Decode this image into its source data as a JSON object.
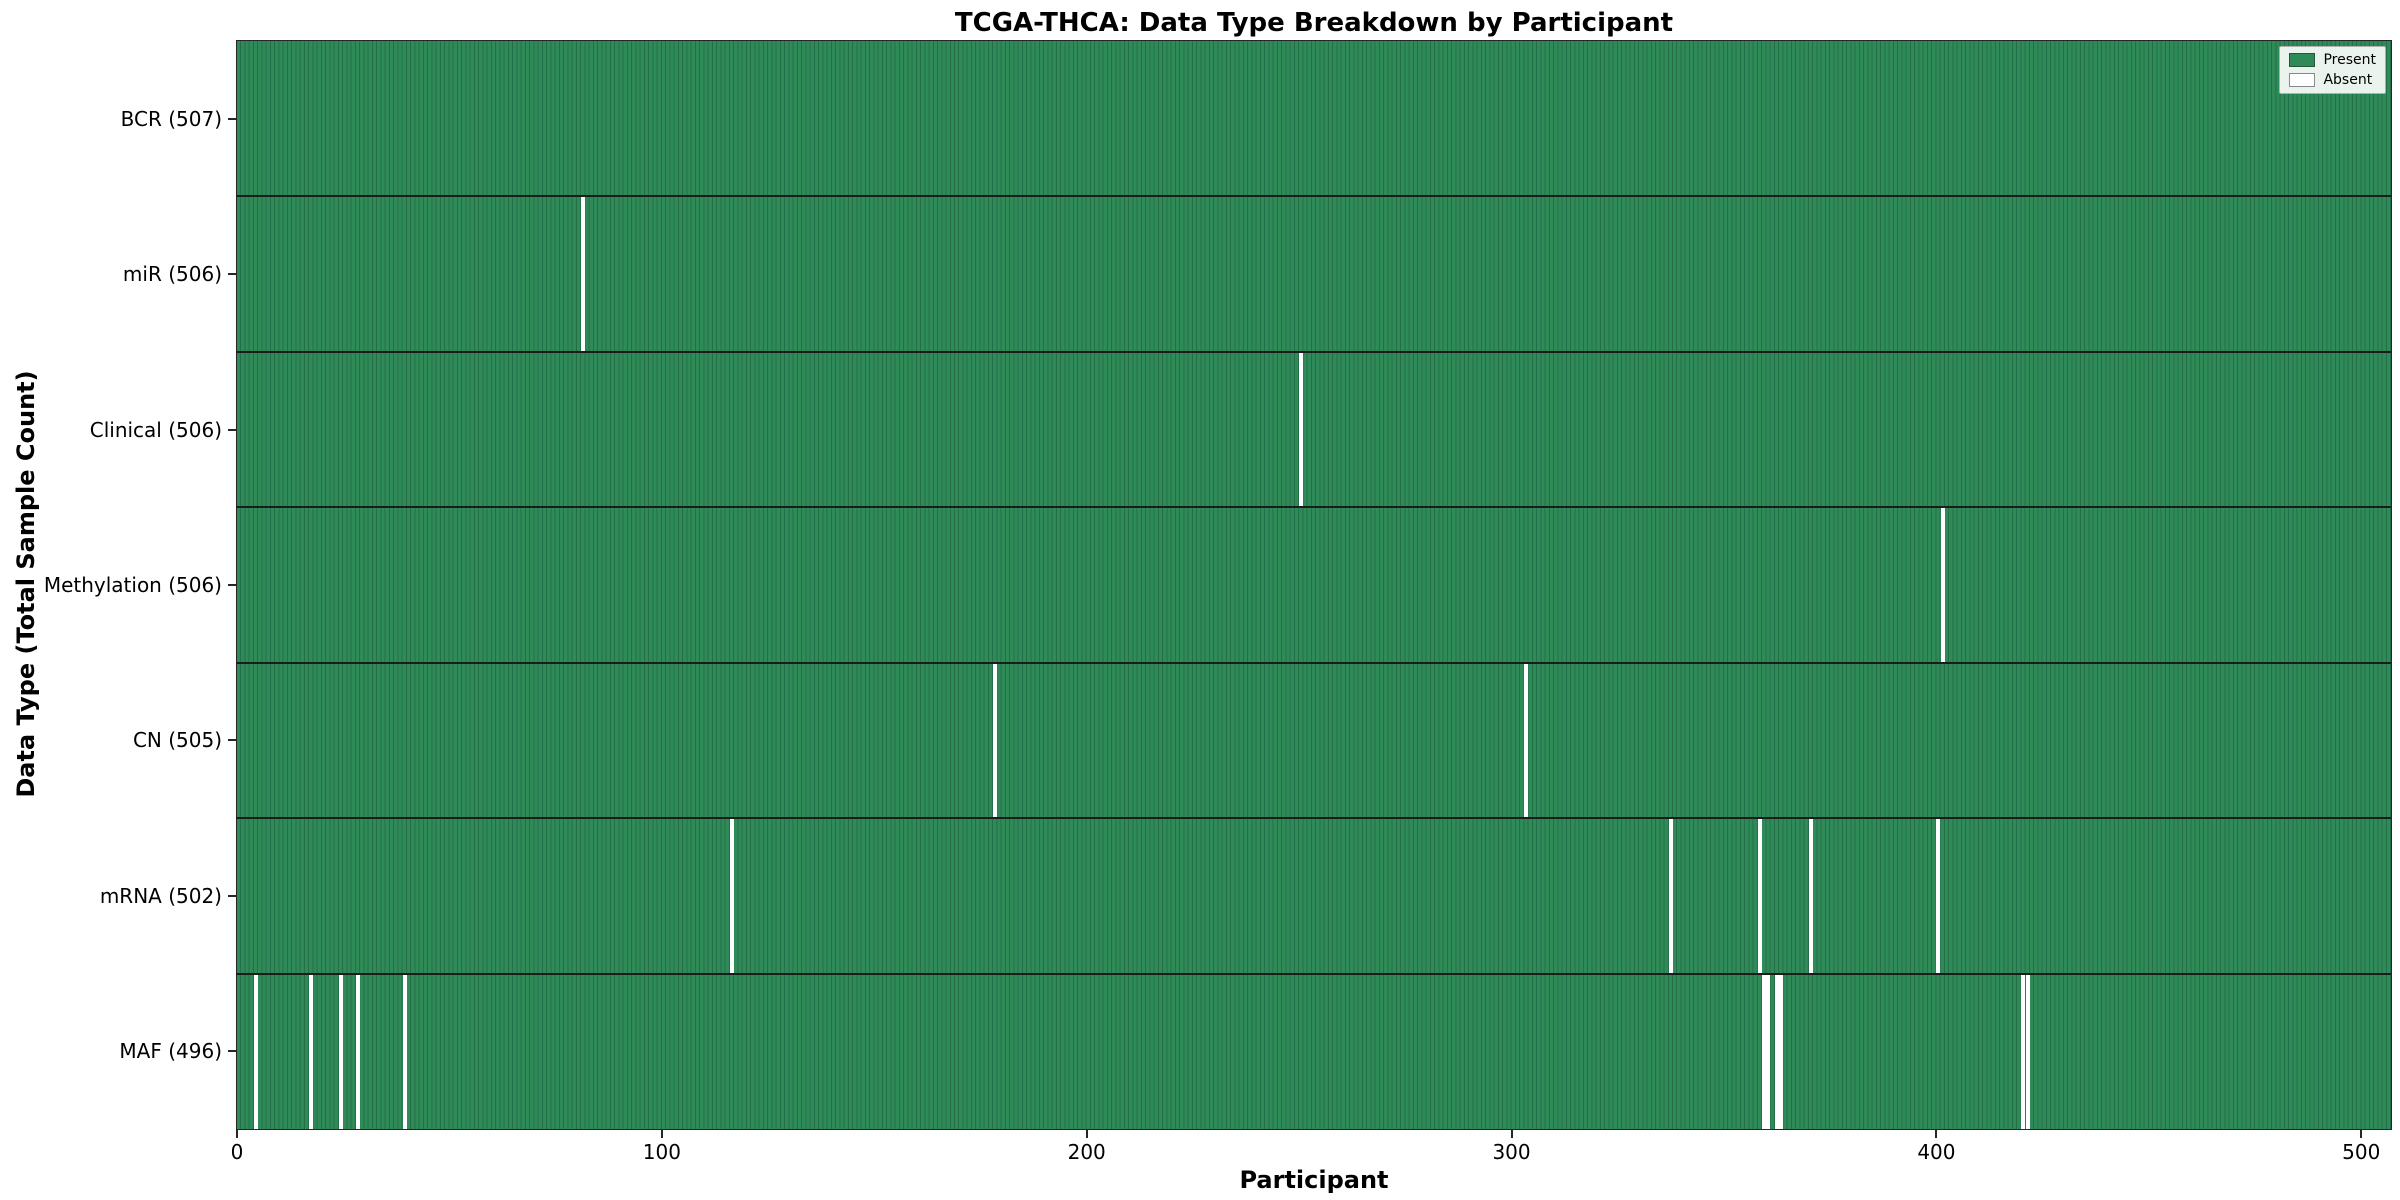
{
  "chart_data": {
    "type": "heatmap",
    "title": "TCGA-THCA: Data Type Breakdown by Participant",
    "xlabel": "Participant",
    "ylabel": "Data Type (Total Sample Count)",
    "x_ticks": [
      0,
      100,
      200,
      300,
      400,
      500
    ],
    "xlim": [
      0,
      507
    ],
    "total_participants": 507,
    "legend": [
      {
        "label": "Present",
        "color": "#2e8b57"
      },
      {
        "label": "Absent",
        "color": "#ffffff"
      }
    ],
    "colors": {
      "present": "#2e8b57",
      "present_edge": "#256f48",
      "absent": "#ffffff",
      "separator": "#1b1b1b"
    },
    "rows": [
      {
        "label": "BCR (507)",
        "count": 507,
        "absent": []
      },
      {
        "label": "miR (506)",
        "count": 506,
        "absent": [
          81
        ]
      },
      {
        "label": "Clinical (506)",
        "count": 506,
        "absent": [
          250
        ]
      },
      {
        "label": "Methylation (506)",
        "count": 506,
        "absent": [
          401
        ]
      },
      {
        "label": "CN (505)",
        "count": 505,
        "absent": [
          178,
          303
        ]
      },
      {
        "label": "mRNA (502)",
        "count": 502,
        "absent": [
          116,
          337,
          358,
          370,
          400
        ]
      },
      {
        "label": "MAF (496)",
        "count": 496,
        "absent": [
          4,
          17,
          24,
          28,
          39,
          359,
          360,
          362,
          363,
          420,
          421
        ]
      }
    ]
  }
}
